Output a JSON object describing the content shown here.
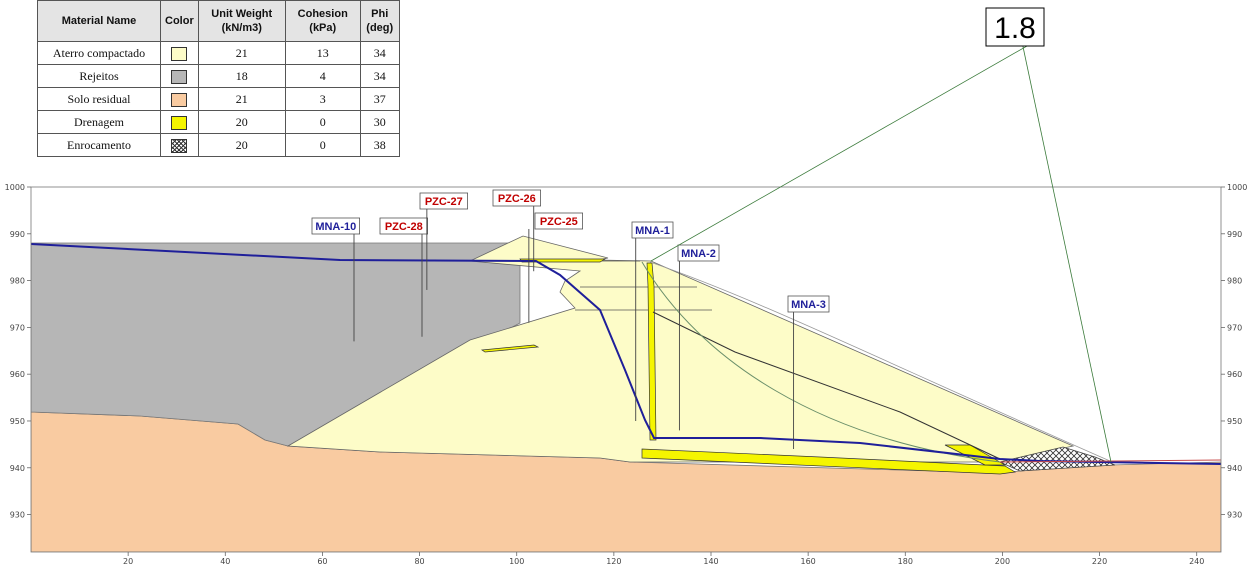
{
  "materials_table": {
    "headers": {
      "name": "Material Name",
      "color": "Color",
      "unit_weight": "Unit Weight (kN/m3)",
      "cohesion": "Cohesion (kPa)",
      "phi": "Phi (deg)"
    },
    "rows": [
      {
        "name": "Aterro compactado",
        "color": "#fdfcc8",
        "unit_weight": "21",
        "cohesion": "13",
        "phi": "34"
      },
      {
        "name": "Rejeitos",
        "color": "#b6b6b6",
        "unit_weight": "18",
        "cohesion": "4",
        "phi": "34"
      },
      {
        "name": "Solo residual",
        "color": "#f9cba1",
        "unit_weight": "21",
        "cohesion": "3",
        "phi": "37"
      },
      {
        "name": "Drenagem",
        "color": "#f5f500",
        "unit_weight": "20",
        "cohesion": "0",
        "phi": "30"
      },
      {
        "name": "Enrocamento",
        "color": "hatch",
        "unit_weight": "20",
        "cohesion": "0",
        "phi": "38"
      }
    ]
  },
  "factor_of_safety": "1.8",
  "axes": {
    "x_range": [
      0,
      245
    ],
    "y_range": [
      922,
      1000
    ],
    "x_ticks": [
      20,
      40,
      60,
      80,
      100,
      120,
      140,
      160,
      180,
      200,
      220,
      240
    ],
    "y_ticks": [
      930,
      940,
      950,
      960,
      970,
      980,
      990,
      1000
    ]
  },
  "instruments": [
    {
      "label": "MNA-10",
      "color": "#1f1f9a",
      "x": 66.5,
      "y_top": 985,
      "y_bottom": 967
    },
    {
      "label": "PZC-28",
      "color": "#c00000",
      "x": 80.5,
      "y_top": 985,
      "y_bottom": 968
    },
    {
      "label": "PZC-27",
      "color": "#c00000",
      "x": 81.5,
      "y_top": 985,
      "y_bottom": 978
    },
    {
      "label": "PZC-26",
      "color": "#c00000",
      "x": 103.5,
      "y_top": 990,
      "y_bottom": 982
    },
    {
      "label": "PZC-25",
      "color": "#c00000",
      "x": 102.5,
      "y_top": 990,
      "y_bottom": 971
    },
    {
      "label": "MNA-1",
      "color": "#1f1f9a",
      "x": 124.5,
      "y_top": 985,
      "y_bottom": 950
    },
    {
      "label": "MNA-2",
      "color": "#1f1f9a",
      "x": 133.5,
      "y_top": 982,
      "y_bottom": 948
    },
    {
      "label": "MNA-3",
      "color": "#1f1f9a",
      "x": 157.0,
      "y_top": 968,
      "y_bottom": 944
    }
  ]
}
